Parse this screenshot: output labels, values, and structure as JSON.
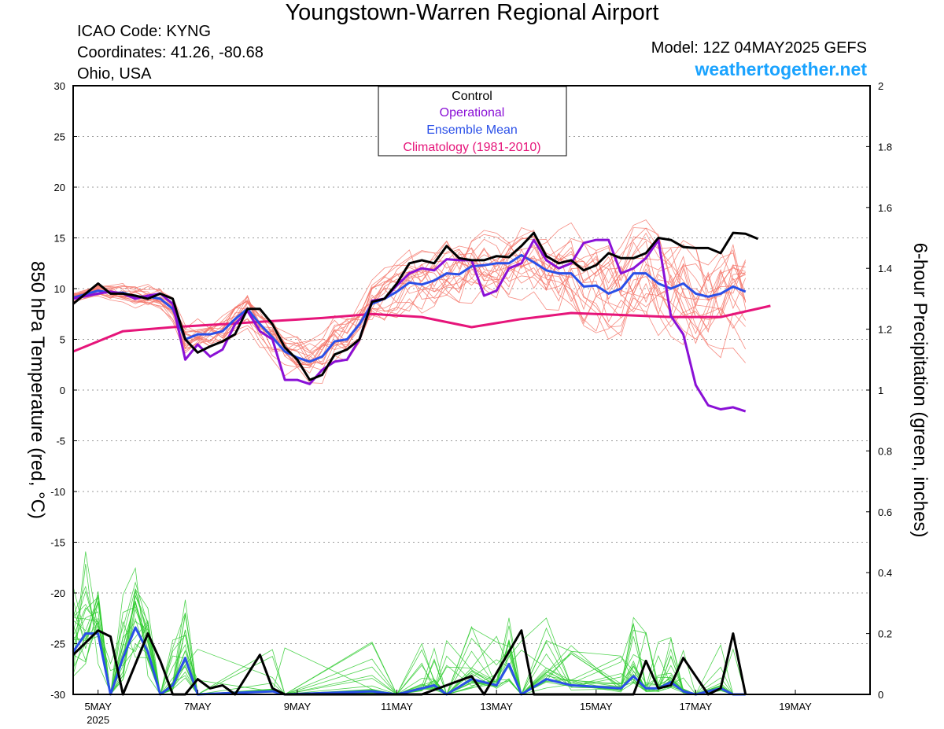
{
  "header": {
    "title": "Youngstown-Warren Regional Airport",
    "icao": "ICAO Code: KYNG",
    "coordinates": "Coordinates: 41.26, -80.68",
    "region": "Ohio, USA",
    "model": "Model: 12Z 04MAY2025 GEFS",
    "site": "weathertogether.net"
  },
  "colors": {
    "ensemble_temp": "#f4756a",
    "ensemble_precip": "#33cc33",
    "control": "#000000",
    "operational": "#8a10d6",
    "ensemble_mean": "#2a4fe8",
    "climatology": "#e6157a",
    "site": "#1aa3ff"
  },
  "chart_data": {
    "type": "line",
    "x_unit": "hours since 12Z 04MAY2025",
    "x_range": [
      12,
      396
    ],
    "x_tick_hours": [
      24,
      72,
      120,
      168,
      216,
      264,
      312,
      360
    ],
    "x_tick_labels": [
      "5MAY",
      "7MAY",
      "9MAY",
      "11MAY",
      "13MAY",
      "15MAY",
      "17MAY",
      "19MAY"
    ],
    "x_sublabel": "2025",
    "left_axis": {
      "label": "850 hPa Temperature (red, °C)",
      "range": [
        -30,
        30
      ],
      "ticks": [
        30,
        25,
        20,
        15,
        10,
        5,
        0,
        -5,
        -10,
        -15,
        -20,
        -25,
        -30
      ]
    },
    "right_axis": {
      "label": "6-hour Precipitation (green, inches)",
      "range": [
        0,
        2
      ],
      "ticks": [
        2,
        1.8,
        1.6,
        1.4,
        1.2,
        1,
        0.8,
        0.6,
        0.4,
        0.2,
        0
      ]
    },
    "grid": "dotted horizontal",
    "legend": {
      "position": "top-center",
      "entries": [
        "Control",
        "Operational",
        "Ensemble Mean",
        "Climatology (1981-2010)"
      ]
    },
    "temperature": {
      "control": [
        [
          12,
          8.5
        ],
        [
          24,
          10.5
        ],
        [
          30,
          9.5
        ],
        [
          36,
          9.5
        ],
        [
          42,
          9.3
        ],
        [
          48,
          9.0
        ],
        [
          54,
          9.5
        ],
        [
          60,
          9.0
        ],
        [
          66,
          5.0
        ],
        [
          72,
          3.7
        ],
        [
          78,
          4.3
        ],
        [
          84,
          4.8
        ],
        [
          90,
          5.5
        ],
        [
          96,
          8.0
        ],
        [
          102,
          8.0
        ],
        [
          108,
          6.5
        ],
        [
          114,
          4.2
        ],
        [
          120,
          3.0
        ],
        [
          126,
          1.0
        ],
        [
          132,
          1.5
        ],
        [
          138,
          3.5
        ],
        [
          144,
          4.0
        ],
        [
          150,
          5.0
        ],
        [
          156,
          8.7
        ],
        [
          162,
          9.0
        ],
        [
          168,
          10.5
        ],
        [
          174,
          12.5
        ],
        [
          180,
          12.8
        ],
        [
          186,
          12.5
        ],
        [
          192,
          14.2
        ],
        [
          198,
          13.0
        ],
        [
          204,
          12.8
        ],
        [
          210,
          12.8
        ],
        [
          216,
          13.2
        ],
        [
          222,
          13.1
        ],
        [
          228,
          14.2
        ],
        [
          234,
          15.5
        ],
        [
          240,
          13.2
        ],
        [
          246,
          12.5
        ],
        [
          252,
          12.8
        ],
        [
          258,
          11.8
        ],
        [
          264,
          12.3
        ],
        [
          270,
          13.5
        ],
        [
          276,
          13.0
        ],
        [
          282,
          13.0
        ],
        [
          288,
          13.5
        ],
        [
          294,
          15.0
        ],
        [
          300,
          14.8
        ],
        [
          306,
          14.1
        ],
        [
          312,
          14.0
        ],
        [
          318,
          14.0
        ],
        [
          324,
          13.5
        ],
        [
          330,
          15.5
        ],
        [
          336,
          15.4
        ],
        [
          342,
          14.9
        ]
      ],
      "operational": [
        [
          12,
          9.0
        ],
        [
          24,
          9.5
        ],
        [
          30,
          9.7
        ],
        [
          36,
          9.5
        ],
        [
          42,
          9.0
        ],
        [
          48,
          9.3
        ],
        [
          54,
          9.5
        ],
        [
          60,
          8.5
        ],
        [
          66,
          3.0
        ],
        [
          72,
          4.5
        ],
        [
          78,
          3.3
        ],
        [
          84,
          4.0
        ],
        [
          90,
          6.5
        ],
        [
          96,
          7.8
        ],
        [
          102,
          5.8
        ],
        [
          108,
          5.0
        ],
        [
          114,
          1.0
        ],
        [
          120,
          1.0
        ],
        [
          126,
          0.6
        ],
        [
          132,
          2.0
        ],
        [
          138,
          2.8
        ],
        [
          144,
          3.0
        ],
        [
          150,
          5.0
        ],
        [
          156,
          8.8
        ],
        [
          162,
          9.0
        ],
        [
          168,
          10.3
        ],
        [
          174,
          11.5
        ],
        [
          180,
          12.0
        ],
        [
          186,
          11.8
        ],
        [
          192,
          12.9
        ],
        [
          198,
          12.8
        ],
        [
          204,
          12.8
        ],
        [
          210,
          9.3
        ],
        [
          216,
          9.8
        ],
        [
          222,
          12.0
        ],
        [
          228,
          12.5
        ],
        [
          234,
          14.8
        ],
        [
          240,
          12.8
        ],
        [
          246,
          12.0
        ],
        [
          252,
          12.5
        ],
        [
          258,
          14.5
        ],
        [
          264,
          14.8
        ],
        [
          270,
          14.8
        ],
        [
          276,
          11.5
        ],
        [
          282,
          12.0
        ],
        [
          288,
          13.0
        ],
        [
          294,
          14.8
        ],
        [
          300,
          7.3
        ],
        [
          306,
          5.5
        ],
        [
          312,
          0.5
        ],
        [
          318,
          -1.5
        ],
        [
          324,
          -1.9
        ],
        [
          330,
          -1.7
        ],
        [
          336,
          -2.1
        ]
      ],
      "ensemble_mean": [
        [
          12,
          9.1
        ],
        [
          24,
          9.8
        ],
        [
          30,
          9.6
        ],
        [
          36,
          9.6
        ],
        [
          42,
          9.2
        ],
        [
          48,
          9.2
        ],
        [
          54,
          9.0
        ],
        [
          60,
          8.0
        ],
        [
          66,
          5.0
        ],
        [
          72,
          5.5
        ],
        [
          78,
          5.5
        ],
        [
          84,
          5.8
        ],
        [
          90,
          7.0
        ],
        [
          96,
          8.0
        ],
        [
          102,
          6.5
        ],
        [
          108,
          5.2
        ],
        [
          114,
          3.8
        ],
        [
          120,
          3.2
        ],
        [
          126,
          2.8
        ],
        [
          132,
          3.3
        ],
        [
          138,
          4.8
        ],
        [
          144,
          5.0
        ],
        [
          150,
          6.5
        ],
        [
          156,
          8.5
        ],
        [
          162,
          9.0
        ],
        [
          168,
          9.7
        ],
        [
          174,
          10.6
        ],
        [
          180,
          10.4
        ],
        [
          186,
          10.8
        ],
        [
          192,
          11.5
        ],
        [
          198,
          11.4
        ],
        [
          204,
          12.2
        ],
        [
          210,
          12.3
        ],
        [
          216,
          12.5
        ],
        [
          222,
          12.5
        ],
        [
          228,
          13.3
        ],
        [
          234,
          12.6
        ],
        [
          240,
          11.8
        ],
        [
          246,
          11.5
        ],
        [
          252,
          11.5
        ],
        [
          258,
          10.2
        ],
        [
          264,
          10.3
        ],
        [
          270,
          9.5
        ],
        [
          276,
          10.0
        ],
        [
          282,
          11.5
        ],
        [
          288,
          11.5
        ],
        [
          294,
          10.5
        ],
        [
          300,
          10.0
        ],
        [
          306,
          10.5
        ],
        [
          312,
          9.5
        ],
        [
          318,
          9.2
        ],
        [
          324,
          9.5
        ],
        [
          330,
          10.2
        ],
        [
          336,
          9.7
        ]
      ],
      "climatology": [
        [
          12,
          3.8
        ],
        [
          36,
          5.8
        ],
        [
          60,
          6.2
        ],
        [
          84,
          6.5
        ],
        [
          108,
          6.8
        ],
        [
          132,
          7.1
        ],
        [
          156,
          7.5
        ],
        [
          180,
          7.2
        ],
        [
          204,
          6.2
        ],
        [
          228,
          7.0
        ],
        [
          252,
          7.6
        ],
        [
          276,
          7.4
        ],
        [
          300,
          7.2
        ],
        [
          324,
          7.2
        ],
        [
          348,
          8.3
        ]
      ]
    },
    "precipitation": {
      "control": [
        [
          12,
          0.13
        ],
        [
          24,
          0.21
        ],
        [
          30,
          0.19
        ],
        [
          36,
          0.0
        ],
        [
          48,
          0.2
        ],
        [
          54,
          0.11
        ],
        [
          60,
          0.0
        ],
        [
          66,
          0.0
        ],
        [
          72,
          0.05
        ],
        [
          78,
          0.02
        ],
        [
          84,
          0.03
        ],
        [
          90,
          0.0
        ],
        [
          102,
          0.13
        ],
        [
          108,
          0.02
        ],
        [
          114,
          0.0
        ],
        [
          180,
          0.0
        ],
        [
          204,
          0.06
        ],
        [
          210,
          0.0
        ],
        [
          228,
          0.21
        ],
        [
          234,
          0.0
        ],
        [
          240,
          0.0
        ],
        [
          282,
          0.0
        ],
        [
          288,
          0.11
        ],
        [
          294,
          0.02
        ],
        [
          300,
          0.03
        ],
        [
          306,
          0.12
        ],
        [
          312,
          0.06
        ],
        [
          318,
          0.0
        ],
        [
          324,
          0.02
        ],
        [
          330,
          0.2
        ],
        [
          336,
          0.0
        ]
      ],
      "ensemble_mean": [
        [
          12,
          0.14
        ],
        [
          18,
          0.2
        ],
        [
          24,
          0.2
        ],
        [
          30,
          0.0
        ],
        [
          36,
          0.12
        ],
        [
          42,
          0.22
        ],
        [
          48,
          0.14
        ],
        [
          54,
          0.0
        ],
        [
          60,
          0.03
        ],
        [
          66,
          0.12
        ],
        [
          72,
          0.0
        ],
        [
          108,
          0.01
        ],
        [
          114,
          0.0
        ],
        [
          156,
          0.01
        ],
        [
          168,
          0.0
        ],
        [
          180,
          0.02
        ],
        [
          186,
          0.03
        ],
        [
          192,
          0.0
        ],
        [
          204,
          0.05
        ],
        [
          216,
          0.03
        ],
        [
          222,
          0.1
        ],
        [
          228,
          0.0
        ],
        [
          240,
          0.05
        ],
        [
          252,
          0.03
        ],
        [
          276,
          0.02
        ],
        [
          282,
          0.06
        ],
        [
          288,
          0.02
        ],
        [
          294,
          0.02
        ],
        [
          300,
          0.04
        ],
        [
          306,
          0.01
        ],
        [
          312,
          0.0
        ],
        [
          324,
          0.02
        ],
        [
          330,
          0.0
        ],
        [
          336,
          0.0
        ]
      ]
    }
  }
}
